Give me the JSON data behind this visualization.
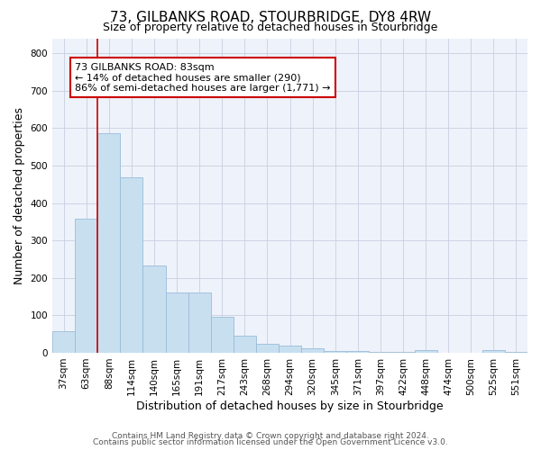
{
  "title": "73, GILBANKS ROAD, STOURBRIDGE, DY8 4RW",
  "subtitle": "Size of property relative to detached houses in Stourbridge",
  "xlabel": "Distribution of detached houses by size in Stourbridge",
  "ylabel": "Number of detached properties",
  "footer_line1": "Contains HM Land Registry data © Crown copyright and database right 2024.",
  "footer_line2": "Contains public sector information licensed under the Open Government Licence v3.0.",
  "bin_labels": [
    "37sqm",
    "63sqm",
    "88sqm",
    "114sqm",
    "140sqm",
    "165sqm",
    "191sqm",
    "217sqm",
    "243sqm",
    "268sqm",
    "294sqm",
    "320sqm",
    "345sqm",
    "371sqm",
    "397sqm",
    "422sqm",
    "448sqm",
    "474sqm",
    "500sqm",
    "525sqm",
    "551sqm"
  ],
  "bar_values": [
    57,
    357,
    587,
    468,
    233,
    162,
    162,
    95,
    46,
    25,
    20,
    12,
    5,
    5,
    3,
    2,
    7,
    1,
    1,
    8,
    2
  ],
  "bar_color": "#c8dff0",
  "bar_edge_color": "#9abcd8",
  "vline_color": "#cc0000",
  "annotation_text": "73 GILBANKS ROAD: 83sqm\n← 14% of detached houses are smaller (290)\n86% of semi-detached houses are larger (1,771) →",
  "annotation_box_color": "#ffffff",
  "annotation_box_edge": "#cc0000",
  "ylim": [
    0,
    840
  ],
  "yticks": [
    0,
    100,
    200,
    300,
    400,
    500,
    600,
    700,
    800
  ],
  "plot_bg_color": "#eef2fa",
  "grid_color": "#c8cfe0",
  "title_fontsize": 11,
  "subtitle_fontsize": 9,
  "axis_label_fontsize": 9,
  "tick_fontsize": 7.5,
  "footer_fontsize": 6.5
}
